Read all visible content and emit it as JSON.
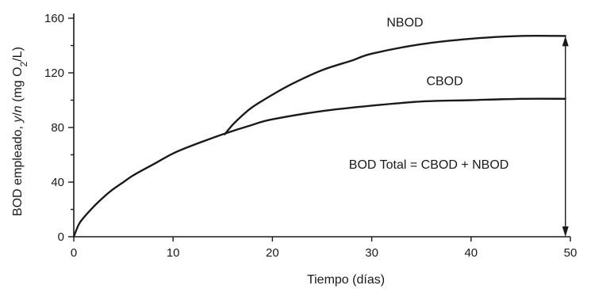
{
  "chart_data": {
    "type": "line",
    "xlabel": "Tiempo (días)",
    "ylabel_parts": [
      "BOD empleado, ",
      "y",
      "/",
      "n",
      " (mg O",
      "2",
      "/L)"
    ],
    "xlim": [
      0,
      50
    ],
    "ylim": [
      0,
      160
    ],
    "x_ticks": [
      0,
      10,
      20,
      30,
      40,
      50
    ],
    "y_ticks": [
      0,
      40,
      80,
      120,
      160
    ],
    "y_minor_ticks": [
      20,
      60,
      100,
      140
    ],
    "grid": false,
    "series": [
      {
        "name": "CBOD",
        "x": [
          0,
          0.5,
          1,
          2,
          3,
          4,
          5,
          6,
          8,
          10,
          12,
          15,
          18,
          20,
          25,
          30,
          35,
          40,
          45,
          49.5
        ],
        "y": [
          0,
          9,
          14,
          22,
          29,
          35,
          40,
          45,
          53,
          61,
          67,
          75,
          82,
          86,
          92,
          96,
          99,
          100,
          101,
          101
        ]
      },
      {
        "name": "NBOD",
        "x": [
          15.2,
          16,
          17,
          18,
          20,
          22,
          25,
          28,
          30,
          35,
          40,
          45,
          49.5
        ],
        "y": [
          75,
          82,
          89,
          95,
          104,
          112,
          122,
          129,
          134,
          141,
          145,
          147,
          147
        ]
      }
    ],
    "annotations": [
      {
        "text": "NBOD",
        "x": 31.5,
        "y": 154
      },
      {
        "text": "CBOD",
        "x": 35.5,
        "y": 111
      },
      {
        "text": "BOD Total = CBOD + NBOD",
        "x": 27.7,
        "y": 50
      },
      {
        "arrow": "double",
        "x": 49.5,
        "y_from": 0,
        "y_to": 147
      }
    ]
  }
}
